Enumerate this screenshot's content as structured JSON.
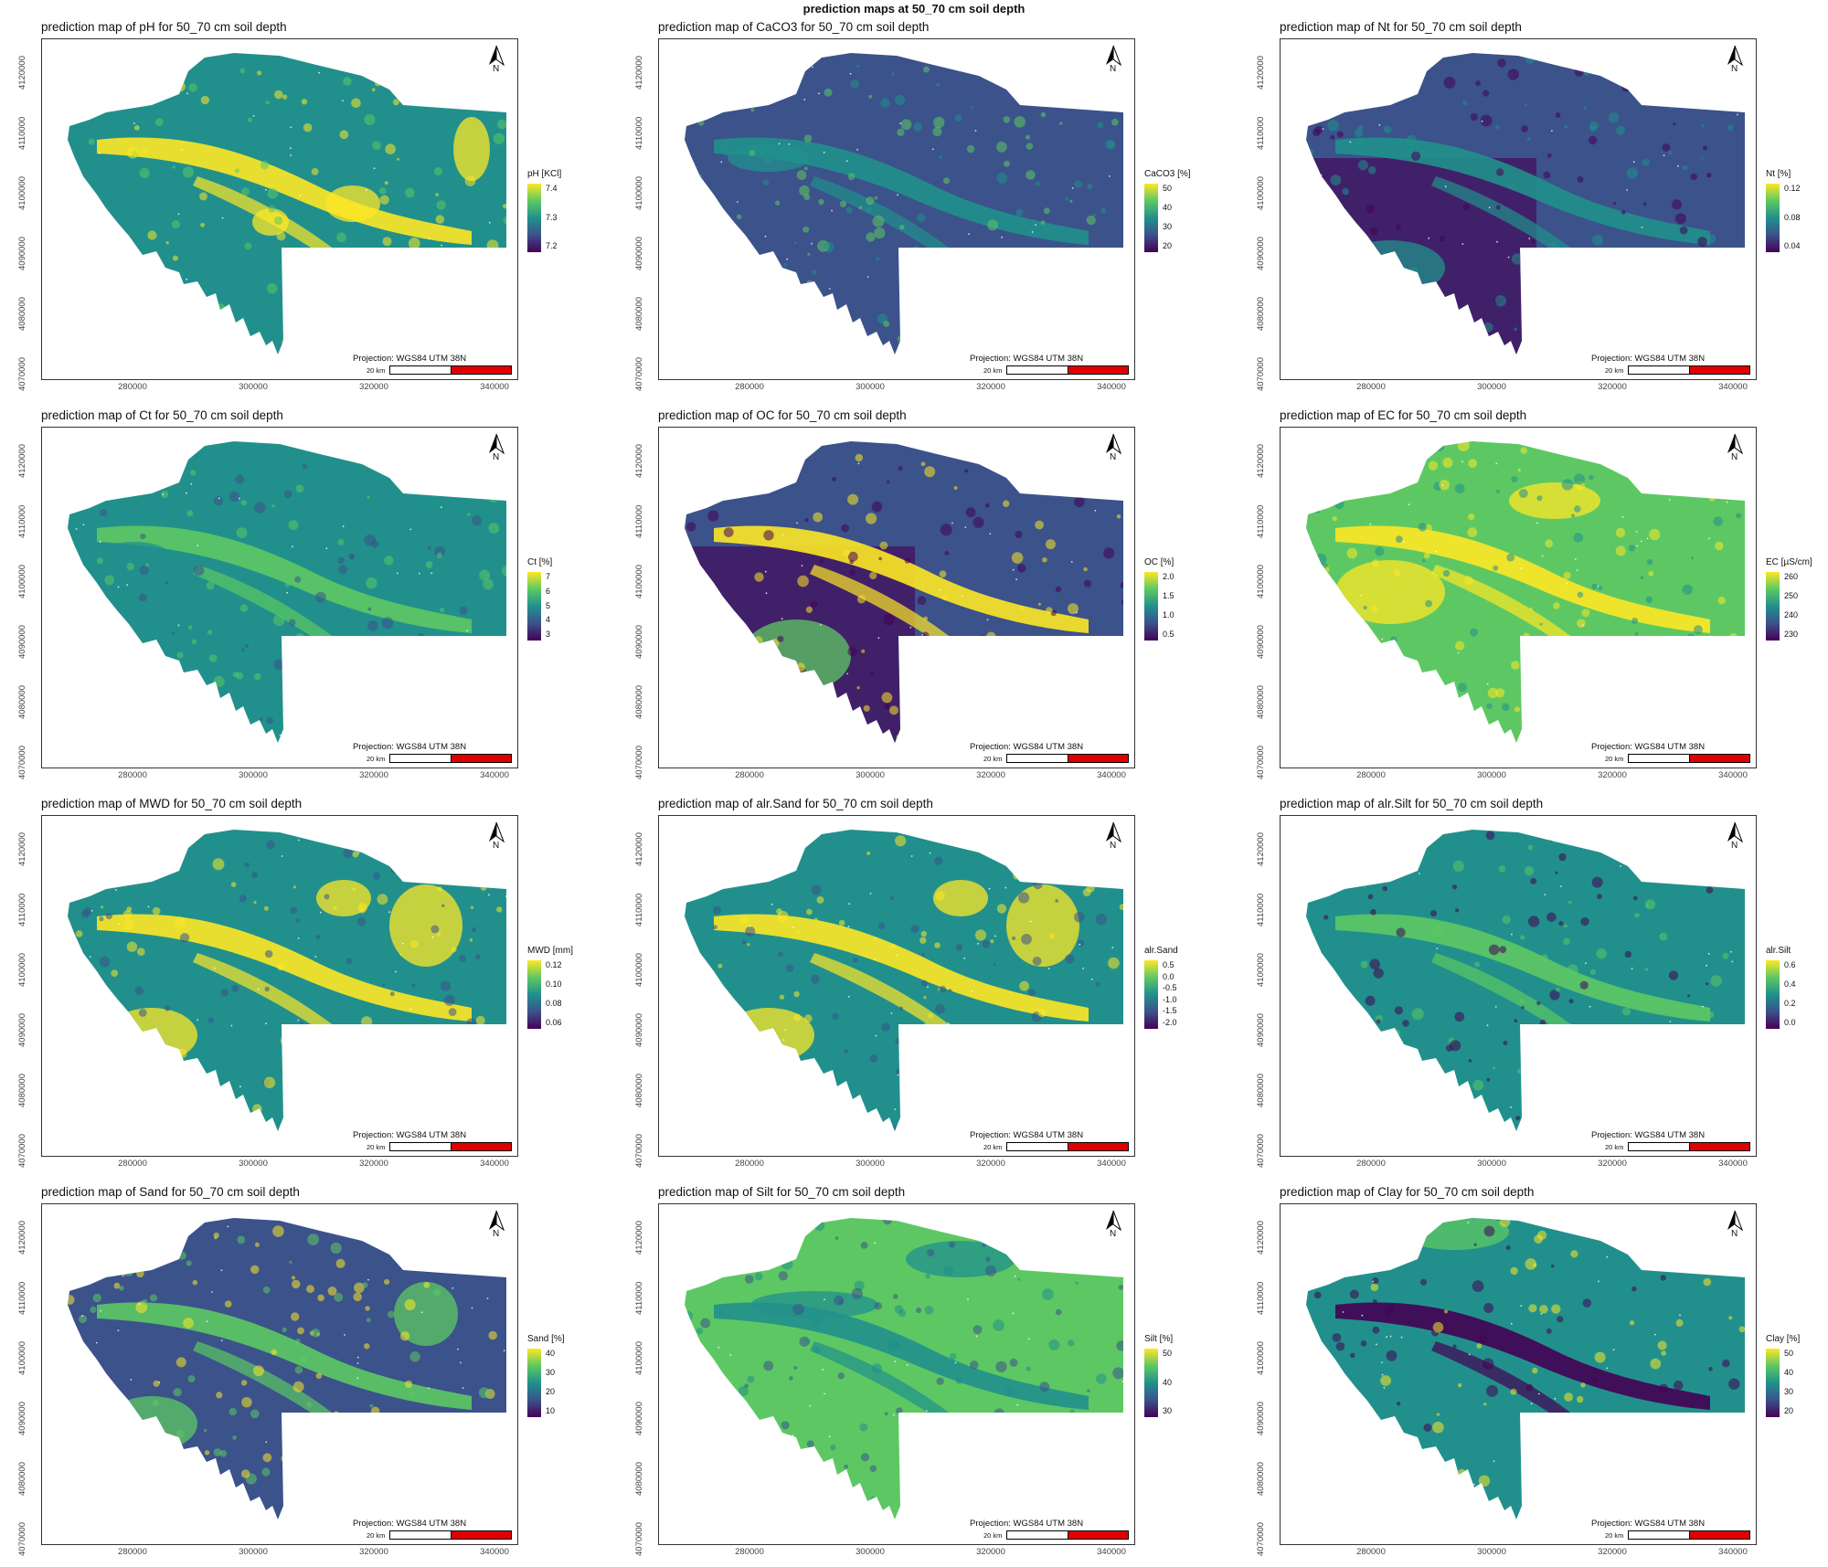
{
  "figure_title": "prediction maps at 50_70 cm soil depth",
  "x_ticks": [
    "280000",
    "300000",
    "320000",
    "340000"
  ],
  "y_ticks": [
    "4070000",
    "4080000",
    "4090000",
    "4100000",
    "4110000",
    "4120000"
  ],
  "projection_label": "Projection: WGS84 UTM 38N",
  "scale_label": "20 km",
  "north_label": "N",
  "colors": {
    "viridis": [
      "#440154",
      "#3b528b",
      "#21908c",
      "#5dc863",
      "#fde725"
    ],
    "scale_red": "#e00000"
  },
  "panels": [
    {
      "title": "prediction map of pH for 50_70 cm soil depth",
      "legend": {
        "title": "pH [KCl]",
        "ticks": [
          "7.4",
          "7.3",
          "7.2"
        ]
      },
      "pattern": "ph"
    },
    {
      "title": "prediction map of CaCO3 for 50_70 cm soil depth",
      "legend": {
        "title": "CaCO3 [%]",
        "ticks": [
          "50",
          "40",
          "30",
          "20"
        ]
      },
      "pattern": "caco3"
    },
    {
      "title": "prediction map of Nt for 50_70 cm soil depth",
      "legend": {
        "title": "Nt [%]",
        "ticks": [
          "0.12",
          "0.08",
          "0.04"
        ]
      },
      "pattern": "nt"
    },
    {
      "title": "prediction map of Ct for 50_70 cm soil depth",
      "legend": {
        "title": "Ct [%]",
        "ticks": [
          "7",
          "6",
          "5",
          "4",
          "3"
        ]
      },
      "pattern": "ct"
    },
    {
      "title": "prediction map of OC for 50_70 cm soil depth",
      "legend": {
        "title": "OC [%]",
        "ticks": [
          "2.0",
          "1.5",
          "1.0",
          "0.5"
        ]
      },
      "pattern": "oc"
    },
    {
      "title": "prediction map of EC for 50_70 cm soil depth",
      "legend": {
        "title": "EC [µS/cm]",
        "ticks": [
          "260",
          "250",
          "240",
          "230"
        ]
      },
      "pattern": "ec"
    },
    {
      "title": "prediction map of MWD for 50_70 cm soil depth",
      "legend": {
        "title": "MWD [mm]",
        "ticks": [
          "0.12",
          "0.10",
          "0.08",
          "0.06"
        ]
      },
      "pattern": "mwd"
    },
    {
      "title": "prediction map of alr.Sand for 50_70 cm soil depth",
      "legend": {
        "title": "alr.Sand",
        "ticks": [
          "0.5",
          "0.0",
          "-0.5",
          "-1.0",
          "-1.5",
          "-2.0"
        ]
      },
      "pattern": "mwd"
    },
    {
      "title": "prediction map of alr.Silt for 50_70 cm soil depth",
      "legend": {
        "title": "alr.Silt",
        "ticks": [
          "0.6",
          "0.4",
          "0.2",
          "0.0"
        ]
      },
      "pattern": "silt_alr"
    },
    {
      "title": "prediction map of Sand for 50_70 cm soil depth",
      "legend": {
        "title": "Sand [%]",
        "ticks": [
          "40",
          "30",
          "20",
          "10"
        ]
      },
      "pattern": "sand"
    },
    {
      "title": "prediction map of Silt for 50_70 cm soil depth",
      "legend": {
        "title": "Silt [%]",
        "ticks": [
          "50",
          "40",
          "30"
        ]
      },
      "pattern": "silt"
    },
    {
      "title": "prediction map of Clay for 50_70 cm soil depth",
      "legend": {
        "title": "Clay [%]",
        "ticks": [
          "50",
          "40",
          "30",
          "20"
        ]
      },
      "pattern": "clay"
    }
  ]
}
